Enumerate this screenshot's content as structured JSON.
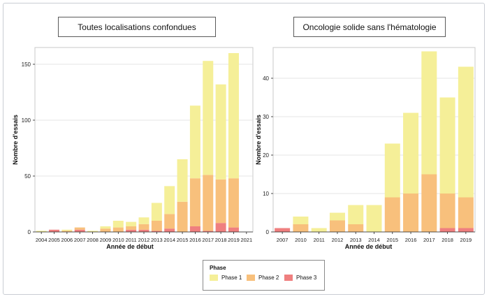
{
  "colors": {
    "phase1": "#f5ef98",
    "phase2": "#f8c07c",
    "phase3": "#ef7f7f",
    "grid": "#dedede",
    "axis": "#222222"
  },
  "legend": {
    "title": "Phase",
    "items": [
      "Phase 1",
      "Phase 2",
      "Phase 3"
    ]
  },
  "chart_data": [
    {
      "type": "bar",
      "stacked": true,
      "title": "Toutes localisations confondues",
      "xlabel": "Année de début",
      "ylabel": "Nombre d'essais",
      "ylim": [
        0,
        165
      ],
      "yticks": [
        0,
        50,
        100,
        150
      ],
      "grid": true,
      "categories": [
        "2004",
        "2005",
        "2006",
        "2007",
        "2008",
        "2009",
        "2010",
        "2011",
        "2012",
        "2013",
        "2014",
        "2015",
        "2016",
        "2017",
        "2018",
        "2019",
        "2021"
      ],
      "series": [
        {
          "name": "Phase 3",
          "values": [
            0,
            2,
            0,
            2,
            0,
            0,
            0,
            2,
            2,
            1,
            3,
            0,
            5,
            1,
            8,
            4,
            0
          ]
        },
        {
          "name": "Phase 2",
          "values": [
            0,
            0,
            1,
            2,
            0,
            3,
            4,
            3,
            5,
            9,
            13,
            27,
            43,
            50,
            39,
            44,
            0
          ]
        },
        {
          "name": "Phase 1",
          "values": [
            1,
            0,
            1,
            0,
            1,
            2,
            6,
            4,
            6,
            16,
            25,
            38,
            65,
            102,
            85,
            112,
            0
          ]
        }
      ]
    },
    {
      "type": "bar",
      "stacked": true,
      "title": "Oncologie solide sans l'hématologie",
      "xlabel": "Année de début",
      "ylabel": "Nombre d'essais",
      "ylim": [
        0,
        48
      ],
      "yticks": [
        0,
        10,
        20,
        30,
        40
      ],
      "grid": true,
      "categories": [
        "2007",
        "2010",
        "2011",
        "2012",
        "2013",
        "2014",
        "2015",
        "2016",
        "2017",
        "2018",
        "2019"
      ],
      "series": [
        {
          "name": "Phase 3",
          "values": [
            1,
            0,
            0,
            0,
            0,
            0,
            0,
            0,
            0,
            1,
            1
          ]
        },
        {
          "name": "Phase 2",
          "values": [
            0,
            2,
            0,
            3,
            2,
            0,
            9,
            10,
            15,
            9,
            8
          ]
        },
        {
          "name": "Phase 1",
          "values": [
            0,
            2,
            1,
            2,
            5,
            7,
            14,
            21,
            32,
            25,
            34
          ]
        }
      ]
    }
  ]
}
